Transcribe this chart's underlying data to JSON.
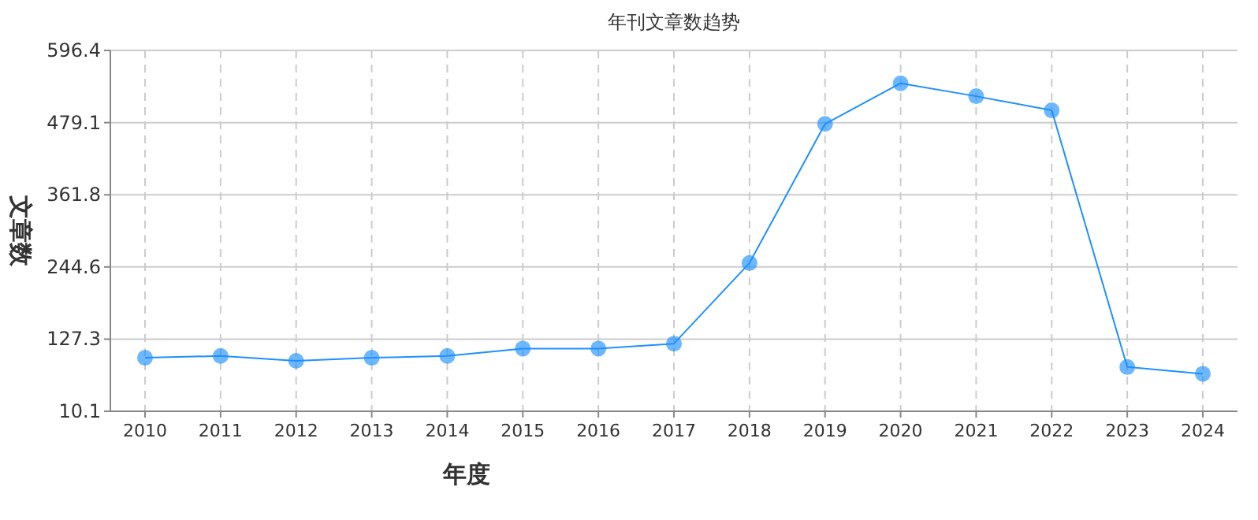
{
  "chart_data": {
    "type": "line",
    "title": "年刊文章数趋势",
    "xlabel": "年度",
    "ylabel": "文章数",
    "categories": [
      "2010",
      "2011",
      "2012",
      "2013",
      "2014",
      "2015",
      "2016",
      "2017",
      "2018",
      "2019",
      "2020",
      "2021",
      "2022",
      "2023",
      "2024"
    ],
    "series": [
      {
        "color": "#1e90ff",
        "values": [
          97,
          100,
          92,
          97,
          100,
          112,
          112,
          120,
          251,
          477,
          543,
          522,
          499,
          82,
          71
        ]
      }
    ],
    "ylim": [
      10.1,
      596.4
    ],
    "yticks": [
      10.1,
      127.3,
      244.6,
      361.8,
      479.1,
      596.4
    ],
    "grid": true,
    "marker": "circle",
    "line_style": "solid"
  }
}
